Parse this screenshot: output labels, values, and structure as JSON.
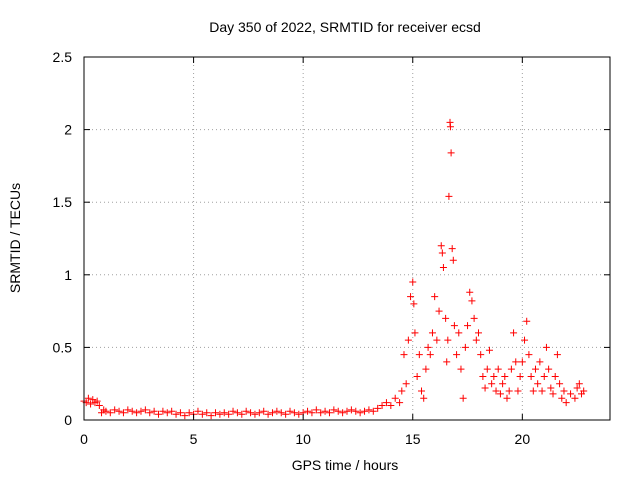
{
  "chart_data": {
    "type": "scatter",
    "title": "Day 350 of 2022, SRMTID for receiver ecsd",
    "xlabel": "GPS time / hours",
    "ylabel": "SRMTID / TECUs",
    "xlim": [
      0,
      24
    ],
    "ylim": [
      0,
      2.5
    ],
    "x_ticks": [
      0,
      5,
      10,
      15,
      20
    ],
    "x_tick_labels": [
      "0",
      "5",
      "10",
      "15",
      "20"
    ],
    "y_ticks": [
      0,
      0.5,
      1,
      1.5,
      2,
      2.5
    ],
    "y_tick_labels": [
      "0",
      "0.5",
      "1",
      "1.5",
      "2",
      "2.5"
    ],
    "grid": true,
    "marker": "plus",
    "series": [
      {
        "name": "SRMTID",
        "color": "#ff0000",
        "points": [
          [
            0.0,
            0.13
          ],
          [
            0.1,
            0.12
          ],
          [
            0.2,
            0.15
          ],
          [
            0.3,
            0.11
          ],
          [
            0.4,
            0.14
          ],
          [
            0.5,
            0.12
          ],
          [
            0.6,
            0.13
          ],
          [
            0.7,
            0.1
          ],
          [
            0.8,
            0.05
          ],
          [
            0.9,
            0.07
          ],
          [
            1.0,
            0.06
          ],
          [
            1.2,
            0.05
          ],
          [
            1.4,
            0.07
          ],
          [
            1.6,
            0.06
          ],
          [
            1.8,
            0.05
          ],
          [
            2.0,
            0.07
          ],
          [
            2.2,
            0.06
          ],
          [
            2.4,
            0.05
          ],
          [
            2.6,
            0.06
          ],
          [
            2.8,
            0.07
          ],
          [
            3.0,
            0.05
          ],
          [
            3.2,
            0.06
          ],
          [
            3.4,
            0.04
          ],
          [
            3.6,
            0.06
          ],
          [
            3.8,
            0.05
          ],
          [
            4.0,
            0.06
          ],
          [
            4.2,
            0.04
          ],
          [
            4.4,
            0.05
          ],
          [
            4.6,
            0.03
          ],
          [
            4.8,
            0.05
          ],
          [
            5.0,
            0.04
          ],
          [
            5.2,
            0.06
          ],
          [
            5.4,
            0.04
          ],
          [
            5.6,
            0.05
          ],
          [
            5.8,
            0.03
          ],
          [
            6.0,
            0.05
          ],
          [
            6.2,
            0.04
          ],
          [
            6.4,
            0.05
          ],
          [
            6.6,
            0.04
          ],
          [
            6.8,
            0.06
          ],
          [
            7.0,
            0.05
          ],
          [
            7.2,
            0.04
          ],
          [
            7.4,
            0.06
          ],
          [
            7.6,
            0.05
          ],
          [
            7.8,
            0.04
          ],
          [
            8.0,
            0.05
          ],
          [
            8.2,
            0.06
          ],
          [
            8.4,
            0.04
          ],
          [
            8.6,
            0.05
          ],
          [
            8.8,
            0.06
          ],
          [
            9.0,
            0.05
          ],
          [
            9.2,
            0.04
          ],
          [
            9.4,
            0.06
          ],
          [
            9.6,
            0.05
          ],
          [
            9.8,
            0.04
          ],
          [
            10.0,
            0.05
          ],
          [
            10.2,
            0.06
          ],
          [
            10.4,
            0.05
          ],
          [
            10.6,
            0.07
          ],
          [
            10.8,
            0.05
          ],
          [
            11.0,
            0.06
          ],
          [
            11.2,
            0.05
          ],
          [
            11.4,
            0.07
          ],
          [
            11.6,
            0.06
          ],
          [
            11.8,
            0.05
          ],
          [
            12.0,
            0.06
          ],
          [
            12.2,
            0.07
          ],
          [
            12.4,
            0.06
          ],
          [
            12.6,
            0.05
          ],
          [
            12.8,
            0.06
          ],
          [
            13.0,
            0.07
          ],
          [
            13.2,
            0.06
          ],
          [
            13.4,
            0.08
          ],
          [
            13.6,
            0.1
          ],
          [
            13.8,
            0.12
          ],
          [
            14.0,
            0.1
          ],
          [
            14.2,
            0.15
          ],
          [
            14.4,
            0.12
          ],
          [
            14.5,
            0.2
          ],
          [
            14.6,
            0.45
          ],
          [
            14.7,
            0.25
          ],
          [
            14.8,
            0.55
          ],
          [
            14.9,
            0.85
          ],
          [
            15.0,
            0.95
          ],
          [
            15.05,
            0.8
          ],
          [
            15.1,
            0.6
          ],
          [
            15.2,
            0.3
          ],
          [
            15.3,
            0.45
          ],
          [
            15.4,
            0.2
          ],
          [
            15.5,
            0.15
          ],
          [
            15.6,
            0.35
          ],
          [
            15.7,
            0.5
          ],
          [
            15.8,
            0.45
          ],
          [
            15.9,
            0.6
          ],
          [
            16.0,
            0.85
          ],
          [
            16.1,
            0.55
          ],
          [
            16.2,
            0.75
          ],
          [
            16.3,
            1.2
          ],
          [
            16.35,
            1.15
          ],
          [
            16.4,
            1.05
          ],
          [
            16.5,
            0.7
          ],
          [
            16.55,
            0.4
          ],
          [
            16.6,
            0.55
          ],
          [
            16.65,
            1.54
          ],
          [
            16.7,
            2.05
          ],
          [
            16.72,
            2.02
          ],
          [
            16.75,
            1.84
          ],
          [
            16.8,
            1.18
          ],
          [
            16.85,
            1.1
          ],
          [
            16.9,
            0.65
          ],
          [
            17.0,
            0.45
          ],
          [
            17.1,
            0.6
          ],
          [
            17.2,
            0.35
          ],
          [
            17.3,
            0.15
          ],
          [
            17.4,
            0.5
          ],
          [
            17.5,
            0.65
          ],
          [
            17.6,
            0.88
          ],
          [
            17.7,
            0.82
          ],
          [
            17.8,
            0.7
          ],
          [
            17.9,
            0.55
          ],
          [
            18.0,
            0.6
          ],
          [
            18.1,
            0.45
          ],
          [
            18.2,
            0.3
          ],
          [
            18.3,
            0.22
          ],
          [
            18.4,
            0.35
          ],
          [
            18.5,
            0.48
          ],
          [
            18.6,
            0.25
          ],
          [
            18.7,
            0.3
          ],
          [
            18.8,
            0.2
          ],
          [
            18.9,
            0.35
          ],
          [
            19.0,
            0.18
          ],
          [
            19.1,
            0.25
          ],
          [
            19.2,
            0.3
          ],
          [
            19.3,
            0.15
          ],
          [
            19.4,
            0.2
          ],
          [
            19.5,
            0.35
          ],
          [
            19.6,
            0.6
          ],
          [
            19.7,
            0.4
          ],
          [
            19.8,
            0.2
          ],
          [
            19.9,
            0.3
          ],
          [
            20.0,
            0.4
          ],
          [
            20.1,
            0.55
          ],
          [
            20.2,
            0.68
          ],
          [
            20.3,
            0.45
          ],
          [
            20.4,
            0.3
          ],
          [
            20.5,
            0.2
          ],
          [
            20.6,
            0.35
          ],
          [
            20.7,
            0.25
          ],
          [
            20.8,
            0.4
          ],
          [
            20.9,
            0.2
          ],
          [
            21.0,
            0.3
          ],
          [
            21.1,
            0.5
          ],
          [
            21.2,
            0.35
          ],
          [
            21.3,
            0.22
          ],
          [
            21.4,
            0.18
          ],
          [
            21.5,
            0.3
          ],
          [
            21.6,
            0.45
          ],
          [
            21.7,
            0.25
          ],
          [
            21.8,
            0.15
          ],
          [
            21.9,
            0.2
          ],
          [
            22.0,
            0.12
          ],
          [
            22.2,
            0.18
          ],
          [
            22.4,
            0.15
          ],
          [
            22.5,
            0.22
          ],
          [
            22.6,
            0.25
          ],
          [
            22.7,
            0.18
          ],
          [
            22.8,
            0.2
          ]
        ]
      }
    ]
  }
}
